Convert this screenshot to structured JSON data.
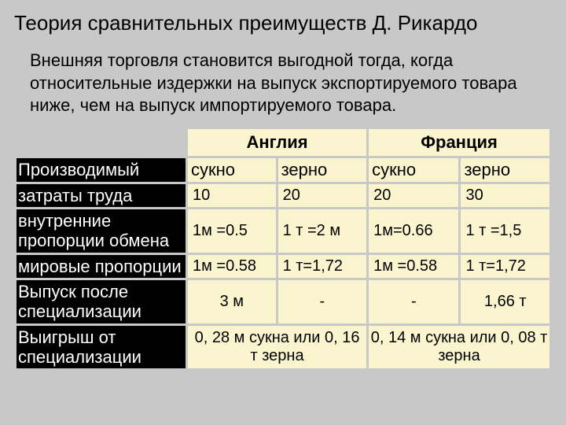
{
  "title": "Теория сравнительных преимуществ Д. Рикардо",
  "subtitle": "Внешняя торговля становится выгодной тогда, когда относительные издержки на выпуск экспортируемого товара ниже, чем на выпуск импортируемого товара.",
  "countries": {
    "eng": "Англия",
    "fra": "Франция"
  },
  "goods": {
    "cloth": "сукно",
    "grain": "зерно"
  },
  "rows": {
    "produced": {
      "label": "Производимый"
    },
    "labor": {
      "label": " затраты труда",
      "vals": [
        "10",
        "20",
        "20",
        "30"
      ]
    },
    "internal": {
      "label": "внутренние пропорции обмена",
      "vals": [
        "1м =0.5",
        "1 т =2 м",
        "1м=0.66",
        "1 т =1,5"
      ]
    },
    "world": {
      "label": " мировые  пропорции",
      "vals": [
        "1м =0.58",
        "1 т=1,72",
        "1м =0.58",
        "1 т=1,72"
      ]
    },
    "output": {
      "label": " Выпуск после  специализации",
      "vals": [
        "3 м",
        "-",
        "-",
        "1,66 т"
      ]
    },
    "gain": {
      "label": " Выигрыш от  специализации",
      "eng": "0, 28 м сукна или 0, 16 т зерна",
      "fra": "0, 14 м сукна или 0, 08 т зерна"
    }
  },
  "style": {
    "bg": "#c8c8c8",
    "cellbg": "#faf4cf",
    "rowlabel_bg": "#000000",
    "rowlabel_fg": "#ffffff",
    "title_fontsize": 26,
    "subtitle_fontsize": 22,
    "cell_fontsize": 20
  }
}
